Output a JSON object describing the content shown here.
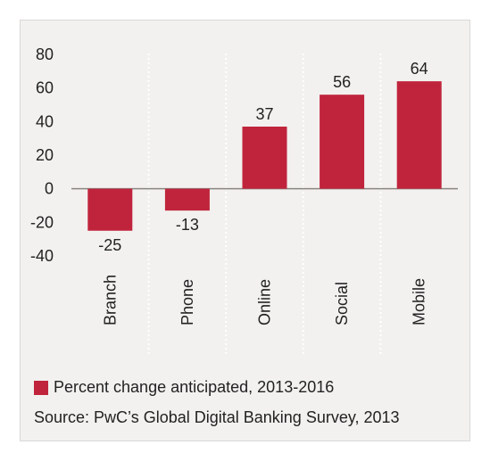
{
  "chart_data": {
    "type": "bar",
    "categories": [
      "Branch",
      "Phone",
      "Online",
      "Social",
      "Mobile"
    ],
    "values": [
      -25,
      -13,
      37,
      56,
      64
    ],
    "ylim": [
      -40,
      80
    ],
    "yticks": [
      80,
      60,
      40,
      20,
      0,
      -20,
      -40
    ],
    "grid": "vertical dotted separators between categories",
    "bar_color": "#c0243c",
    "series": [
      {
        "name": "Percent change anticipated, 2013-2016",
        "values": [
          -25,
          -13,
          37,
          56,
          64
        ]
      }
    ]
  },
  "legend": {
    "label": "Percent change anticipated, 2013-2016",
    "color": "#c0243c"
  },
  "source": "Source: PwC’s Global Digital Banking Survey, 2013"
}
